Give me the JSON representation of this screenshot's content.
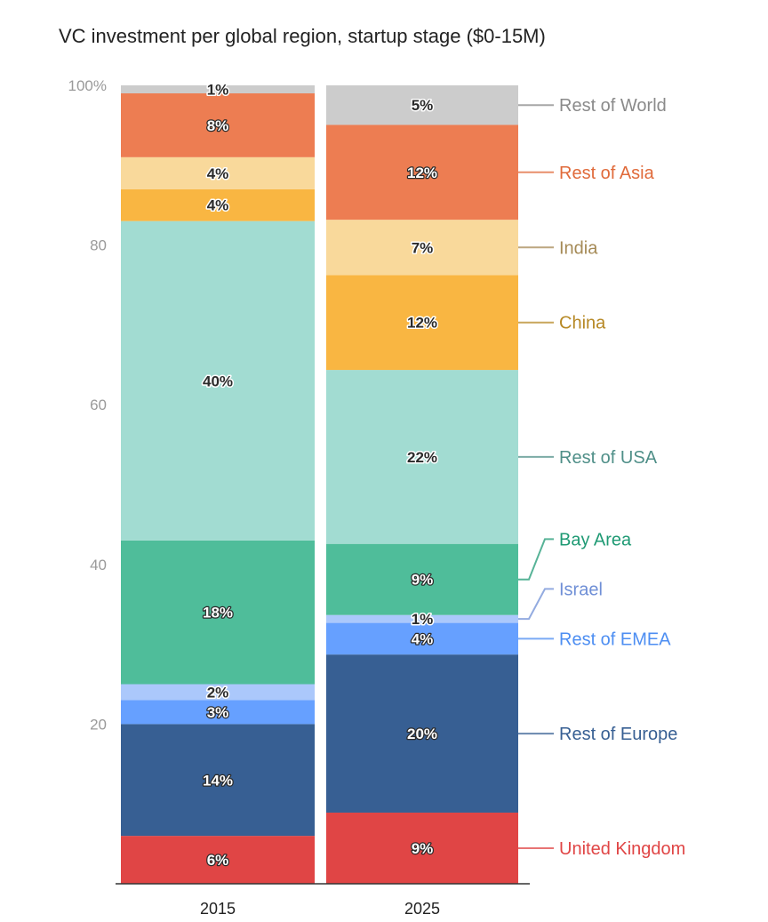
{
  "chart_data": {
    "type": "bar",
    "stacked": true,
    "percent": true,
    "title": "VC investment per global region, startup stage ($0-15M)",
    "categories": [
      "2015",
      "2025"
    ],
    "ylim": [
      0,
      100
    ],
    "yticks": [
      {
        "value": 20,
        "label": "20"
      },
      {
        "value": 40,
        "label": "40"
      },
      {
        "value": 60,
        "label": "60"
      },
      {
        "value": 80,
        "label": "80"
      },
      {
        "value": 100,
        "label": "100%"
      }
    ],
    "legend_position": "right",
    "series": [
      {
        "name": "United Kingdom",
        "color": "#e04545",
        "legend_color": "#e04545",
        "values": [
          6,
          9
        ],
        "labels": [
          "6%",
          "9%"
        ],
        "light_text": true
      },
      {
        "name": "Rest of Europe",
        "color": "#375f93",
        "legend_color": "#375f93",
        "values": [
          14,
          20
        ],
        "labels": [
          "14%",
          "20%"
        ],
        "light_text": true
      },
      {
        "name": "Rest of EMEA",
        "color": "#66a0ff",
        "legend_color": "#4d8ef2",
        "values": [
          3,
          4
        ],
        "labels": [
          "3%",
          "4%"
        ],
        "light_text": true
      },
      {
        "name": "Israel",
        "color": "#abc8fb",
        "legend_color": "#6f8fd6",
        "values": [
          2,
          1
        ],
        "labels": [
          "2%",
          "1%"
        ],
        "light_text": false
      },
      {
        "name": "Bay Area",
        "color": "#4fbd9a",
        "legend_color": "#1f9a74",
        "values": [
          18,
          9
        ],
        "labels": [
          "18%",
          "9%"
        ],
        "light_text": true
      },
      {
        "name": "Rest of USA",
        "color": "#a2dcd2",
        "legend_color": "#4f8f88",
        "values": [
          40,
          22
        ],
        "labels": [
          "40%",
          "22%"
        ],
        "light_text": false
      },
      {
        "name": "China",
        "color": "#f9b642",
        "legend_color": "#b68824",
        "values": [
          4,
          12
        ],
        "labels": [
          "4%",
          "12%"
        ],
        "light_text": false
      },
      {
        "name": "India",
        "color": "#f9d99b",
        "legend_color": "#a58a56",
        "values": [
          4,
          7
        ],
        "labels": [
          "4%",
          "7%"
        ],
        "light_text": false
      },
      {
        "name": "Rest of Asia",
        "color": "#ed7d52",
        "legend_color": "#e06a3a",
        "values": [
          8,
          12
        ],
        "labels": [
          "8%",
          "12%"
        ],
        "light_text": true
      },
      {
        "name": "Rest of World",
        "color": "#cccccc",
        "legend_color": "#8a8a8a",
        "values": [
          1,
          5
        ],
        "labels": [
          "1%",
          "5%"
        ],
        "light_text": false
      }
    ]
  }
}
